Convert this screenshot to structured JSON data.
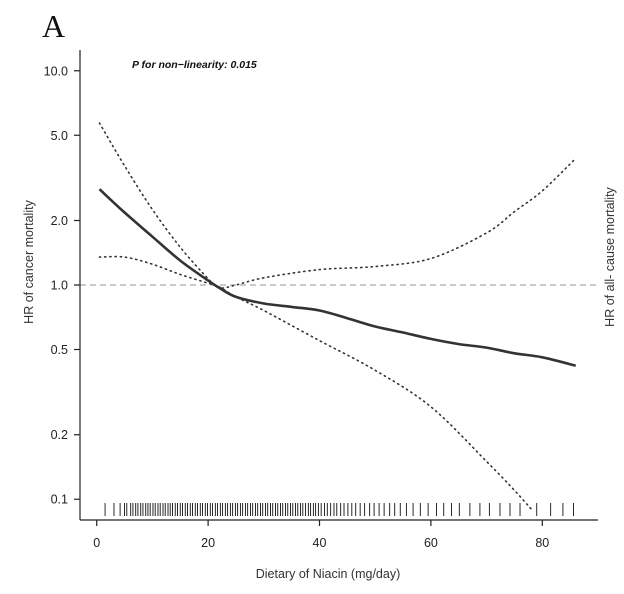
{
  "panel_label": "A",
  "annotation": "P for non−linearity: 0.015",
  "chart_data": {
    "type": "line",
    "title": "",
    "xlabel": "Dietary of Niacin (mg/day)",
    "ylabel": "HR of cancer mortality",
    "ylabel_right": "HR of all- cause mortality",
    "xlim": [
      -3,
      90
    ],
    "ylim": [
      0.08,
      12.5
    ],
    "y_scale": "log",
    "x_ticks": [
      0,
      20,
      40,
      60,
      80
    ],
    "x_tick_labels": [
      "0",
      "20",
      "40",
      "60",
      "80"
    ],
    "y_ticks": [
      0.1,
      0.2,
      0.5,
      1.0,
      2.0,
      5.0,
      10.0
    ],
    "y_tick_labels": [
      "0.1",
      "0.2",
      "0.5",
      "1.0",
      "2.0",
      "5.0",
      "10.0"
    ],
    "reference_line": {
      "y": 1.0,
      "style": "dashed",
      "color": "#aaaaaa"
    },
    "grid": false,
    "series": [
      {
        "style": "solid",
        "color": "#333333",
        "x": [
          0.5,
          5,
          10,
          15,
          20,
          22,
          25,
          30,
          35,
          40,
          45,
          50,
          55,
          60,
          65,
          70,
          75,
          80,
          86
        ],
        "y": [
          2.8,
          2.18,
          1.68,
          1.3,
          1.05,
          0.97,
          0.88,
          0.82,
          0.79,
          0.76,
          0.7,
          0.64,
          0.6,
          0.56,
          0.53,
          0.51,
          0.48,
          0.46,
          0.42
        ]
      },
      {
        "style": "dotted",
        "color": "#333333",
        "x": [
          0.5,
          5,
          10,
          15,
          20,
          22,
          25,
          30,
          40,
          50,
          60,
          70,
          75,
          80,
          86
        ],
        "y": [
          5.7,
          3.6,
          2.25,
          1.5,
          1.07,
          0.97,
          1.0,
          1.08,
          1.18,
          1.22,
          1.33,
          1.75,
          2.2,
          2.75,
          3.9
        ]
      },
      {
        "style": "dotted",
        "color": "#333333",
        "x": [
          0.5,
          5,
          10,
          15,
          20,
          22,
          25,
          30,
          40,
          50,
          60,
          70,
          75,
          78
        ],
        "y": [
          1.35,
          1.35,
          1.25,
          1.12,
          1.02,
          0.98,
          0.88,
          0.76,
          0.55,
          0.4,
          0.27,
          0.15,
          0.11,
          0.09
        ]
      }
    ],
    "rug_x": [
      1.5,
      3.1,
      4.2,
      5.0,
      5.4,
      6.1,
      6.5,
      7.0,
      7.4,
      7.9,
      8.3,
      8.8,
      9.2,
      9.6,
      10.1,
      10.5,
      11.0,
      11.4,
      11.9,
      12.3,
      12.8,
      13.2,
      13.6,
      14.1,
      14.5,
      15.0,
      15.4,
      15.9,
      16.3,
      16.8,
      17.2,
      17.7,
      18.1,
      18.6,
      19.0,
      19.5,
      19.9,
      20.4,
      20.8,
      21.3,
      21.7,
      22.2,
      22.6,
      23.1,
      23.5,
      24.0,
      24.4,
      24.9,
      25.3,
      25.8,
      26.2,
      26.7,
      27.1,
      27.6,
      28.0,
      28.5,
      28.9,
      29.4,
      29.8,
      30.3,
      30.7,
      31.2,
      31.6,
      32.1,
      32.5,
      33.0,
      33.4,
      33.9,
      34.3,
      34.8,
      35.2,
      35.7,
      36.1,
      36.6,
      37.0,
      37.5,
      38.0,
      38.4,
      38.9,
      39.3,
      39.8,
      40.3,
      40.9,
      41.4,
      42.0,
      42.6,
      43.1,
      43.8,
      44.4,
      45.1,
      45.8,
      46.5,
      47.3,
      48.1,
      49.0,
      49.8,
      50.7,
      51.6,
      52.6,
      53.5,
      54.5,
      55.6,
      56.8,
      58.1,
      59.5,
      61.0,
      62.3,
      63.7,
      65.1,
      67.0,
      68.8,
      70.5,
      72.4,
      74.2,
      76.0,
      79.0,
      81.5,
      83.7,
      85.6
    ]
  }
}
